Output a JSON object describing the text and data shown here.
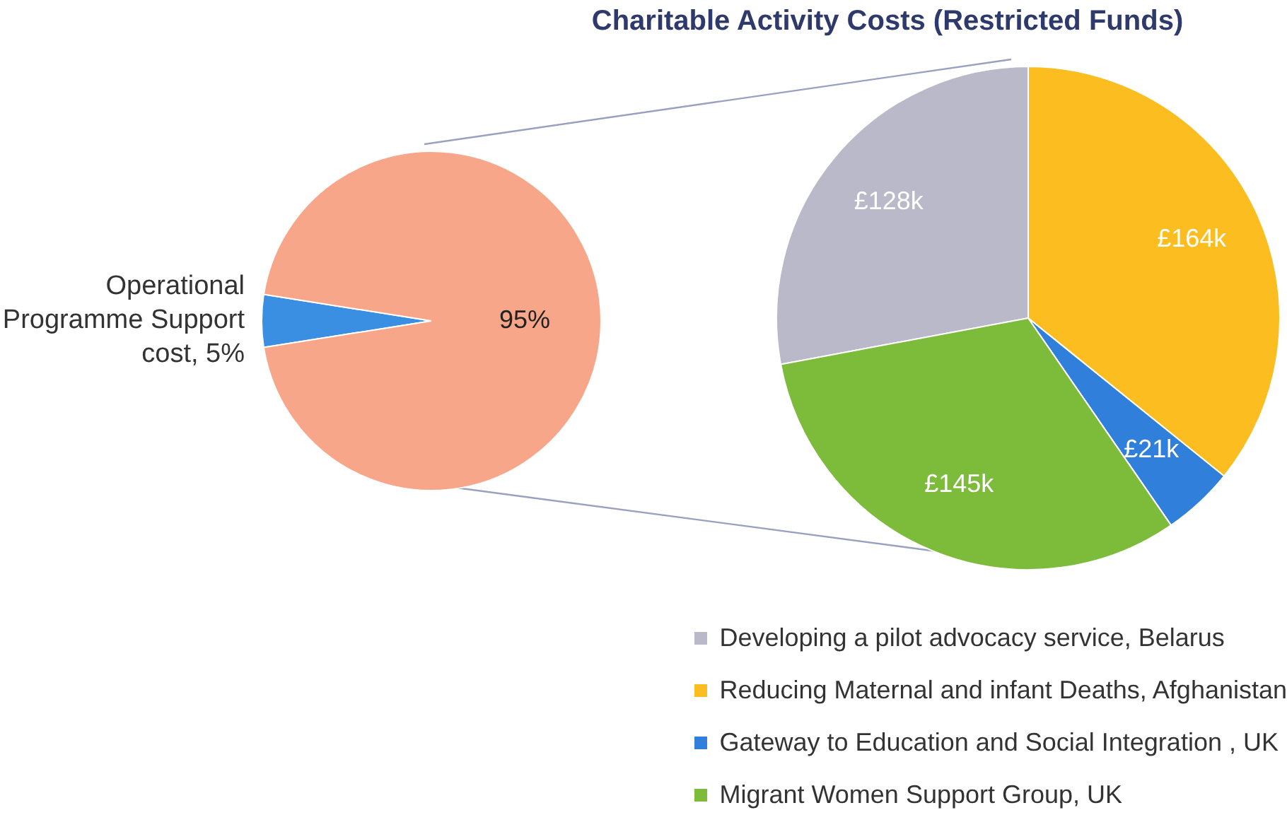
{
  "chart_data": [
    {
      "type": "pie",
      "categories": [
        "Operational Programme Support cost",
        null
      ],
      "values": [
        5,
        95
      ],
      "colors": [
        "#3b8fe3",
        "#f8a68a"
      ],
      "value_labels": [
        "5%",
        "95%"
      ],
      "legend": false
    },
    {
      "type": "pie",
      "title": "Charitable Activity Costs (Restricted Funds)",
      "categories": [
        "Developing a pilot advocacy service, Belarus",
        "Reducing Maternal and infant Deaths, Afghanistan",
        "Gateway to Education and Social Integration , UK",
        "Migrant Women Support Group, UK"
      ],
      "values": [
        128,
        164,
        21,
        145
      ],
      "colors": [
        "#b9b9c9",
        "#fbbd1f",
        "#2f7fdb",
        "#7dbb3b"
      ],
      "value_labels": [
        "£128k",
        "£164k",
        "£21k",
        "£145k"
      ],
      "legend": "bottom"
    }
  ]
}
